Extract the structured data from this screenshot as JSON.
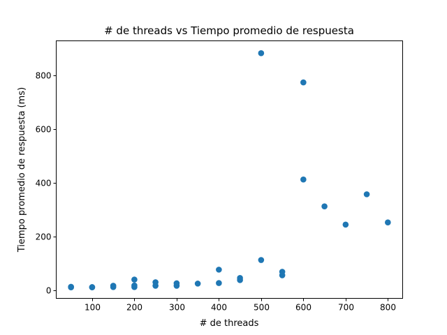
{
  "chart_data": {
    "type": "scatter",
    "title": "# de threads vs Tiempo promedio de respuesta",
    "xlabel": "# de threads",
    "ylabel": "Tiempo promedio de respuesta (ms)",
    "xlim": [
      15,
      835
    ],
    "ylim": [
      -30,
      930
    ],
    "xticks": [
      100,
      200,
      300,
      400,
      500,
      600,
      700,
      800
    ],
    "yticks": [
      0,
      200,
      400,
      600,
      800
    ],
    "grid": false,
    "marker_color": "#1f77b4",
    "series": [
      {
        "x": [
          50,
          50,
          100,
          100,
          150,
          150,
          200,
          200,
          200,
          250,
          250,
          300,
          300,
          350,
          400,
          400,
          450,
          450,
          500,
          500,
          550,
          550,
          600,
          600,
          650,
          700,
          750,
          800
        ],
        "y": [
          11,
          13,
          11,
          12,
          12,
          17,
          12,
          18,
          40,
          17,
          30,
          17,
          26,
          25,
          27,
          77,
          38,
          46,
          113,
          884,
          56,
          69,
          413,
          775,
          313,
          245,
          358,
          253
        ]
      }
    ]
  }
}
